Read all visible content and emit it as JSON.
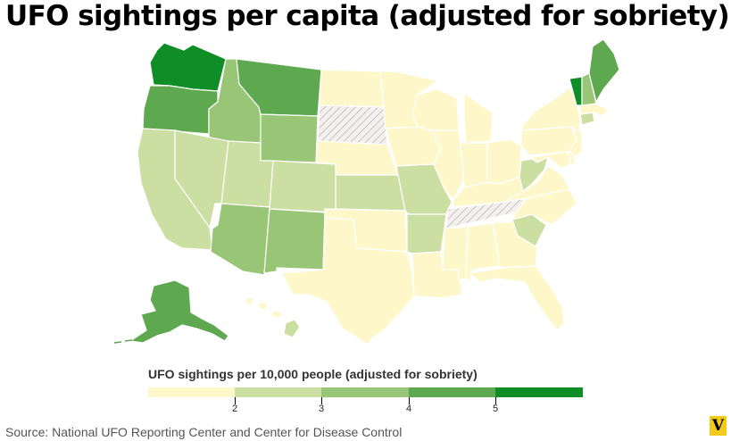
{
  "title": "UFO sightings per capita (adjusted for sobriety)",
  "legend": {
    "title": "UFO sightings per 10,000 people (adjusted for sobriety)",
    "ticks": [
      "2",
      "3",
      "4",
      "5"
    ],
    "colors": [
      "#fdf7c9",
      "#cbdfa2",
      "#99c676",
      "#5ea84f",
      "#0f8d26"
    ]
  },
  "source": "Source: National UFO Reporting Center and Center for Disease Control",
  "logo": "V",
  "no_data_pattern": "gray-hatch",
  "colors": {
    "c0": "#fdf7c9",
    "c1": "#cbdfa2",
    "c2": "#99c676",
    "c3": "#5ea84f",
    "c4": "#0f8d26",
    "border": "#ffffff"
  },
  "states": {
    "WA": {
      "bin": 4
    },
    "OR": {
      "bin": 3
    },
    "ID": {
      "bin": 2
    },
    "MT": {
      "bin": 3
    },
    "WY": {
      "bin": 2
    },
    "CA": {
      "bin": 1
    },
    "NV": {
      "bin": 1
    },
    "UT": {
      "bin": 1
    },
    "CO": {
      "bin": 1
    },
    "AZ": {
      "bin": 2
    },
    "NM": {
      "bin": 2
    },
    "ND": {
      "bin": 0
    },
    "SD": {
      "bin": "none"
    },
    "NE": {
      "bin": 0
    },
    "KS": {
      "bin": 1
    },
    "OK": {
      "bin": 0
    },
    "TX": {
      "bin": 0
    },
    "MN": {
      "bin": 0
    },
    "IA": {
      "bin": 0
    },
    "MO": {
      "bin": 1
    },
    "AR": {
      "bin": 1
    },
    "LA": {
      "bin": 0
    },
    "WI": {
      "bin": 0
    },
    "IL": {
      "bin": 0
    },
    "MI": {
      "bin": 0
    },
    "IN": {
      "bin": 0
    },
    "OH": {
      "bin": 0
    },
    "KY": {
      "bin": 0
    },
    "TN": {
      "bin": "none"
    },
    "MS": {
      "bin": 0
    },
    "AL": {
      "bin": 0
    },
    "GA": {
      "bin": 0
    },
    "FL": {
      "bin": 0
    },
    "SC": {
      "bin": 1
    },
    "NC": {
      "bin": 0
    },
    "VA": {
      "bin": 0
    },
    "WV": {
      "bin": 1
    },
    "PA": {
      "bin": 0
    },
    "NY": {
      "bin": 0
    },
    "VT": {
      "bin": 4
    },
    "NH": {
      "bin": 2
    },
    "ME": {
      "bin": 3
    },
    "MA": {
      "bin": 0
    },
    "CT": {
      "bin": 1
    },
    "NJ": {
      "bin": 0
    },
    "MD": {
      "bin": 0
    },
    "DE": {
      "bin": 0
    },
    "AK": {
      "bin": 3
    },
    "HI": {
      "bin": 1
    }
  }
}
